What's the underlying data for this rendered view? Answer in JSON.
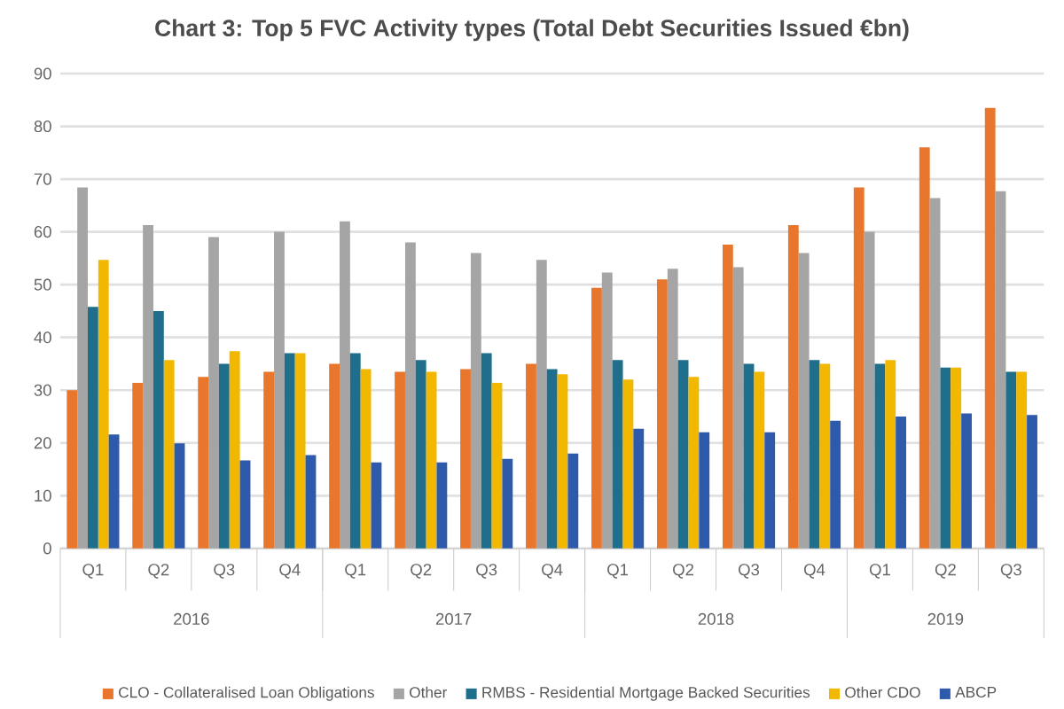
{
  "chart_data": {
    "type": "bar",
    "title": "Chart 3: Top 5 FVC Activity types (Total Debt Securities Issued €bn)",
    "categories": [
      "Q1",
      "Q2",
      "Q3",
      "Q4",
      "Q1",
      "Q2",
      "Q3",
      "Q4",
      "Q1",
      "Q2",
      "Q3",
      "Q4",
      "Q1",
      "Q2",
      "Q3"
    ],
    "annotations": [
      "2016",
      "2017",
      "2018",
      "2019"
    ],
    "series": [
      {
        "name": "CLO - Collateralised Loan Obligations",
        "color": "#e8762d",
        "values": [
          30,
          31.4,
          32.5,
          33.5,
          35,
          33.5,
          34,
          35,
          49.4,
          51,
          57.6,
          61.3,
          68.4,
          76,
          83.5
        ]
      },
      {
        "name": "Other",
        "color": "#a5a5a5",
        "values": [
          68.4,
          61.3,
          59,
          60,
          62,
          58,
          56,
          54.7,
          52.3,
          53,
          53.3,
          56,
          60,
          66.4,
          67.7
        ]
      },
      {
        "name": "RMBS - Residential Mortgage Backed Securities",
        "color": "#1f6e8c",
        "values": [
          45.8,
          45,
          35,
          37,
          37,
          35.7,
          37,
          34,
          35.7,
          35.7,
          35,
          35.7,
          35,
          34.3,
          33.5
        ]
      },
      {
        "name": "Other CDO",
        "color": "#f2b800",
        "values": [
          54.7,
          35.7,
          37.4,
          37,
          34,
          33.5,
          31.4,
          33,
          32,
          32.5,
          33.5,
          35,
          35.7,
          34.3,
          33.5
        ]
      },
      {
        "name": "ABCP",
        "color": "#2e5aac",
        "values": [
          21.6,
          19.9,
          16.7,
          17.7,
          16.3,
          16.3,
          17,
          18,
          22.7,
          22,
          22,
          24.2,
          25,
          25.6,
          25.3
        ]
      }
    ],
    "ylim": [
      0,
      90
    ],
    "yticks": [
      0,
      10,
      20,
      30,
      40,
      50,
      60,
      70,
      80,
      90
    ],
    "grid": "y",
    "legend": "bottom"
  }
}
